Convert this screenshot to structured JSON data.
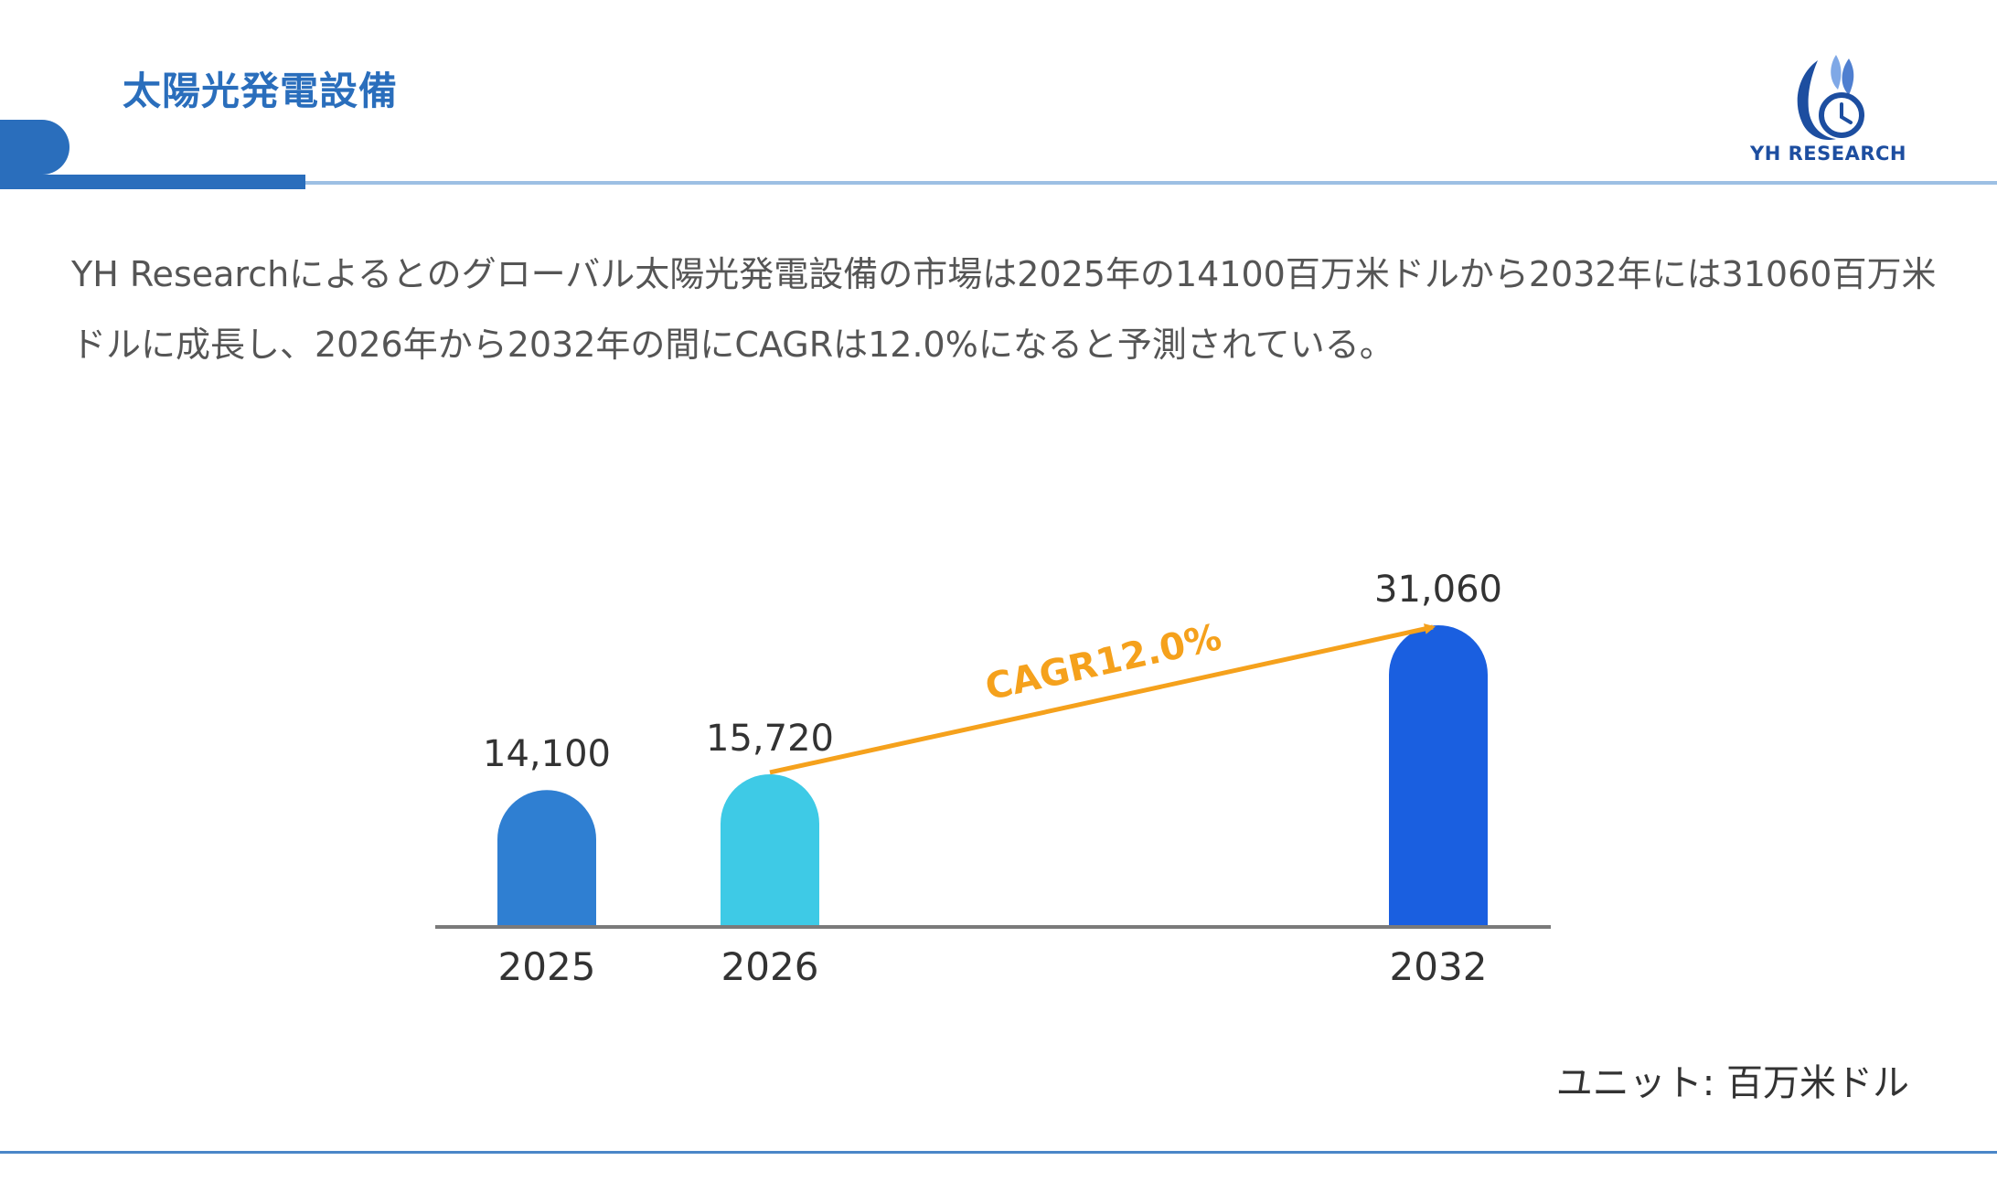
{
  "header": {
    "title": "太陽光発電設備",
    "logo_text": "YH RESEARCH",
    "accent_color": "#2a6ebc"
  },
  "description": "YH Researchによるとのグローバル太陽光発電設備の市場は2025年の14100百万米ドルから2032年には31060百万米ドルに成長し、2026年から2032年の間にCAGRは12.0%になると予測されている。",
  "chart_data": {
    "type": "bar",
    "categories": [
      "2025",
      "2026",
      "2032"
    ],
    "values": [
      14100,
      15720,
      31060
    ],
    "value_labels": [
      "14,100",
      "15,720",
      "31,060"
    ],
    "bar_colors": [
      "#2f7fd2",
      "#3ecae6",
      "#1a5fe0"
    ],
    "annotation": {
      "text": "CAGR12.0%",
      "from_category": "2026",
      "to_category": "2032",
      "color": "#f5a11c"
    },
    "title": "",
    "xlabel": "",
    "ylabel": "",
    "grid": false
  },
  "unit_label": "ユニット: 百万米ドル"
}
